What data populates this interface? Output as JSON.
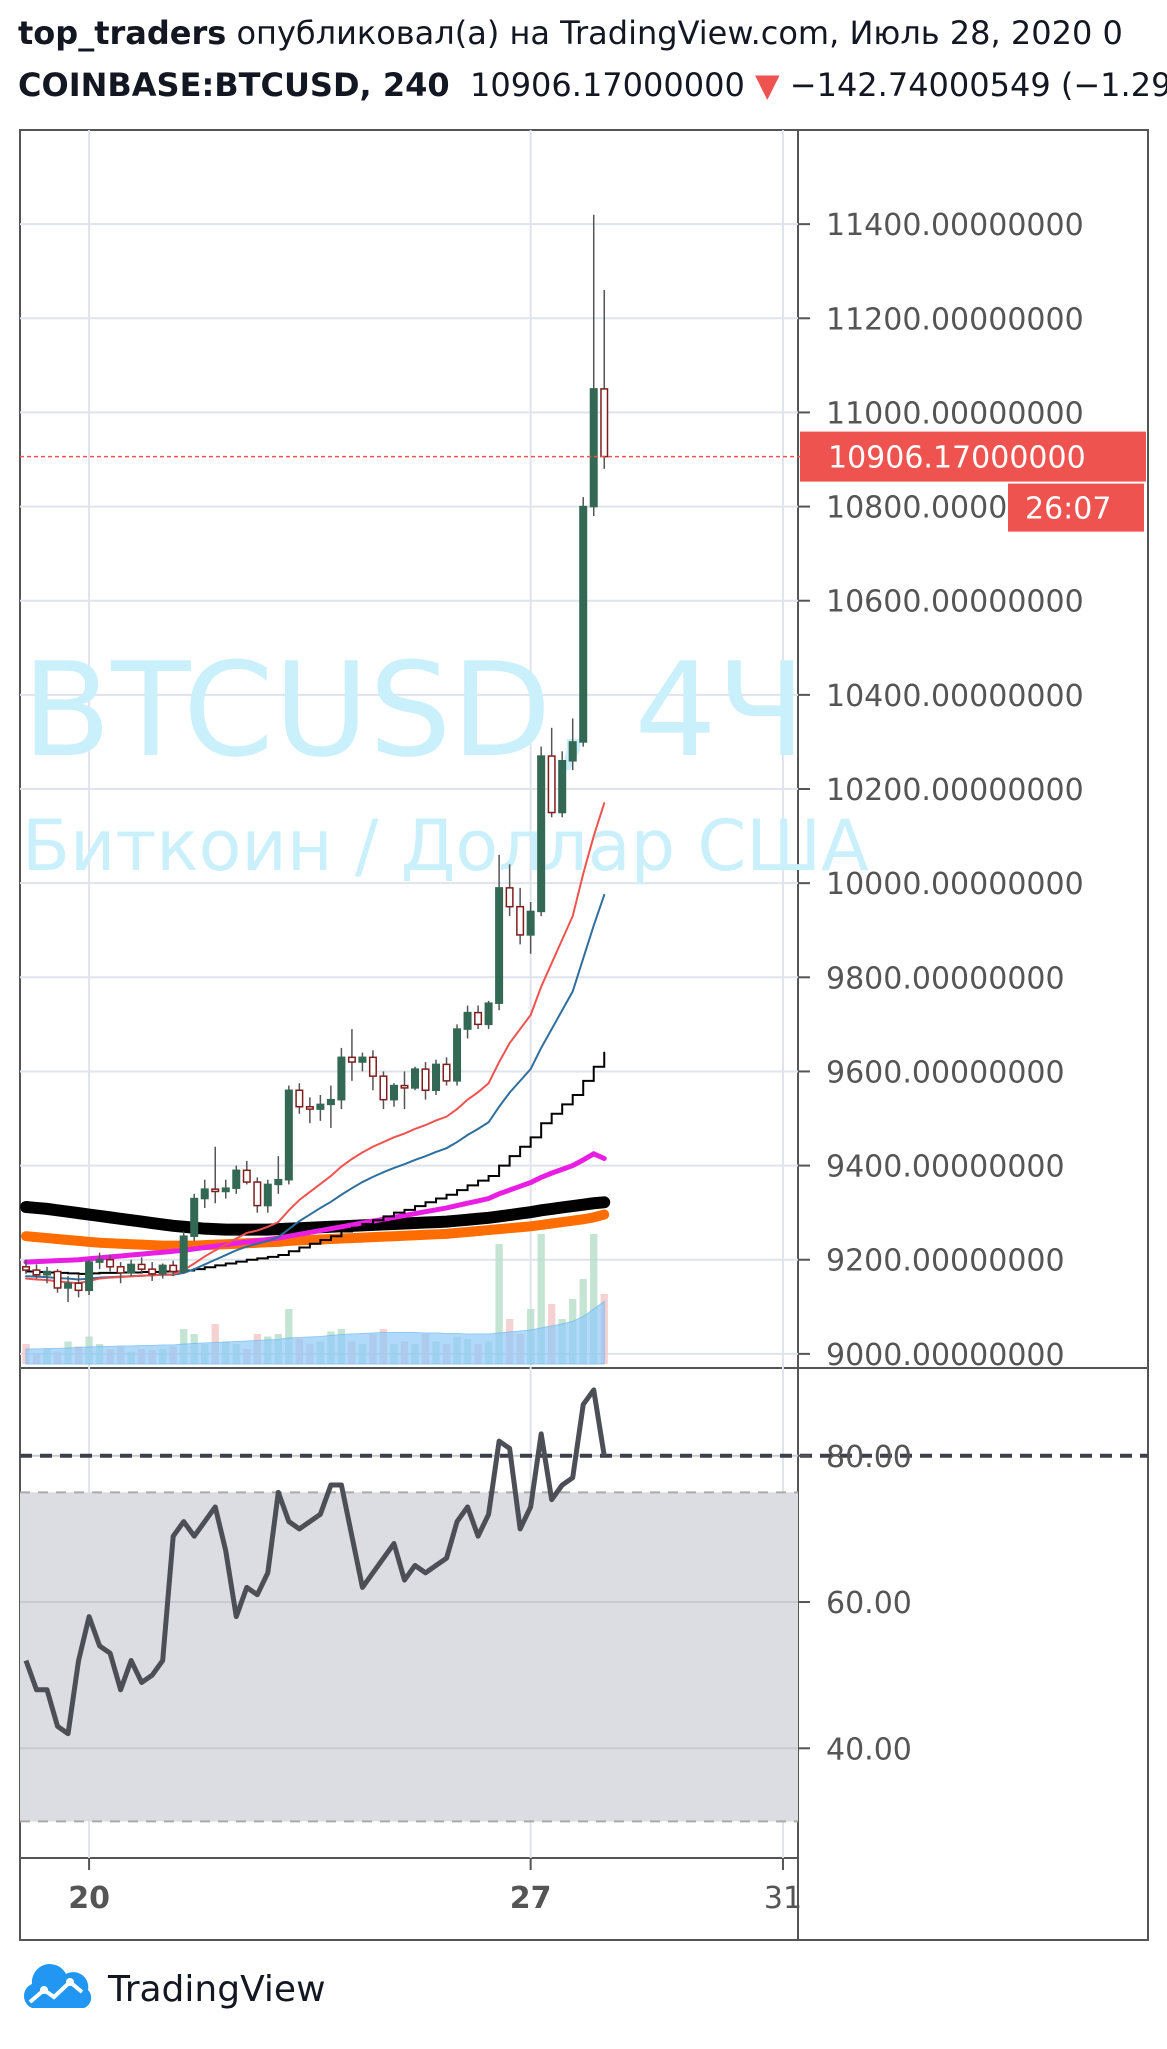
{
  "header": {
    "author": "top_traders",
    "published_text": "опубликовал(а) на TradingView.com, Июль 28, 2020 0",
    "symbol": "COINBASE:BTCUSD, 240",
    "last_price": "10906.17000000",
    "arrow": "▼",
    "change": "−142.74000549 (−1.29"
  },
  "watermark": {
    "line1": "BTCUSD, 4Ч",
    "line2": "Биткоин / Доллар США"
  },
  "footer": {
    "brand": "TradingView",
    "logo_icon": "tradingview-cloud-icon"
  },
  "colors": {
    "bull": "#336854",
    "bear": "#7f1d1d",
    "price_line": "#ef5350",
    "ema_red": "#ef5350",
    "ema_blue": "#2e6f9e",
    "ma_black_thin": "#000000",
    "ma_magenta": "#e91ee3",
    "ma_black_thick": "#000000",
    "ma_orange": "#ff6d00",
    "rsi_line": "#4d4f57",
    "rsi_band": "#dcdde2",
    "watermark": "#c9f0fb"
  },
  "chart_data": [
    {
      "type": "candlestick",
      "symbol": "COINBASE:BTCUSD",
      "interval": "240",
      "y_ticks": [
        "11400.00000000",
        "11200.00000000",
        "11000.00000000",
        "10800.00000000",
        "10600.00000000",
        "10400.00000000",
        "10200.00000000",
        "10000.00000000",
        "9800.00000000",
        "9600.00000000",
        "9400.00000000",
        "9200.00000000",
        "9000.00000000"
      ],
      "y_tick_values": [
        11400,
        11200,
        11000,
        10800,
        10600,
        10400,
        10200,
        10000,
        9800,
        9600,
        9400,
        9200,
        9000
      ],
      "ylim": [
        8970,
        11600
      ],
      "x_ticks": [
        {
          "label": "20",
          "index": 6
        },
        {
          "label": "27",
          "index": 48
        },
        {
          "label": "31",
          "index": 72
        }
      ],
      "xlim": [
        0,
        74
      ],
      "last_price_label": "10906.17000000",
      "last_price": 10906.17,
      "countdown_label": "26:07",
      "candles": [
        [
          9185,
          9200,
          9170,
          9178
        ],
        [
          9178,
          9190,
          9160,
          9168
        ],
        [
          9168,
          9185,
          9150,
          9175
        ],
        [
          9175,
          9180,
          9130,
          9140
        ],
        [
          9140,
          9165,
          9110,
          9150
        ],
        [
          9150,
          9170,
          9120,
          9135
        ],
        [
          9135,
          9200,
          9125,
          9195
        ],
        [
          9195,
          9215,
          9180,
          9200
        ],
        [
          9200,
          9210,
          9175,
          9185
        ],
        [
          9185,
          9195,
          9150,
          9172
        ],
        [
          9172,
          9200,
          9165,
          9190
        ],
        [
          9190,
          9205,
          9170,
          9180
        ],
        [
          9180,
          9195,
          9155,
          9170
        ],
        [
          9170,
          9192,
          9160,
          9188
        ],
        [
          9188,
          9198,
          9165,
          9175
        ],
        [
          9175,
          9260,
          9170,
          9250
        ],
        [
          9250,
          9340,
          9240,
          9330
        ],
        [
          9330,
          9370,
          9310,
          9350
        ],
        [
          9350,
          9440,
          9320,
          9345
        ],
        [
          9345,
          9370,
          9330,
          9352
        ],
        [
          9352,
          9400,
          9340,
          9390
        ],
        [
          9390,
          9410,
          9360,
          9365
        ],
        [
          9365,
          9375,
          9300,
          9315
        ],
        [
          9315,
          9370,
          9300,
          9360
        ],
        [
          9360,
          9420,
          9340,
          9370
        ],
        [
          9370,
          9570,
          9360,
          9560
        ],
        [
          9560,
          9575,
          9510,
          9525
        ],
        [
          9525,
          9545,
          9490,
          9520
        ],
        [
          9520,
          9550,
          9495,
          9530
        ],
        [
          9530,
          9570,
          9480,
          9540
        ],
        [
          9540,
          9650,
          9520,
          9630
        ],
        [
          9630,
          9690,
          9580,
          9620
        ],
        [
          9620,
          9640,
          9600,
          9630
        ],
        [
          9630,
          9645,
          9560,
          9590
        ],
        [
          9590,
          9600,
          9520,
          9540
        ],
        [
          9540,
          9575,
          9525,
          9570
        ],
        [
          9570,
          9600,
          9520,
          9565
        ],
        [
          9565,
          9610,
          9560,
          9605
        ],
        [
          9605,
          9620,
          9540,
          9560
        ],
        [
          9560,
          9625,
          9550,
          9615
        ],
        [
          9615,
          9630,
          9570,
          9580
        ],
        [
          9580,
          9700,
          9570,
          9690
        ],
        [
          9690,
          9740,
          9670,
          9725
        ],
        [
          9725,
          9740,
          9690,
          9700
        ],
        [
          9700,
          9750,
          9690,
          9745
        ],
        [
          9745,
          10060,
          9730,
          9990
        ],
        [
          9990,
          10040,
          9930,
          9950
        ],
        [
          9950,
          9990,
          9870,
          9890
        ],
        [
          9890,
          9960,
          9850,
          9940
        ],
        [
          9940,
          10290,
          9930,
          10270
        ],
        [
          10270,
          10330,
          10140,
          10150
        ],
        [
          10150,
          10280,
          10140,
          10260
        ],
        [
          10260,
          10350,
          10240,
          10300
        ],
        [
          10300,
          10820,
          10290,
          10800
        ],
        [
          10800,
          11420,
          10780,
          11050
        ],
        [
          11050,
          11260,
          10880,
          10906.17
        ]
      ],
      "volume": [
        40,
        20,
        30,
        25,
        45,
        35,
        55,
        40,
        30,
        35,
        25,
        30,
        28,
        30,
        35,
        70,
        60,
        40,
        80,
        45,
        40,
        30,
        60,
        55,
        60,
        110,
        50,
        40,
        45,
        65,
        70,
        45,
        40,
        60,
        70,
        40,
        45,
        40,
        60,
        45,
        40,
        55,
        50,
        40,
        45,
        240,
        90,
        60,
        110,
        260,
        120,
        90,
        130,
        170,
        260,
        140
      ],
      "volume_ma": [
        30,
        30,
        31,
        31,
        32,
        33,
        34,
        35,
        35,
        36,
        36,
        37,
        37,
        38,
        38,
        40,
        41,
        42,
        43,
        44,
        45,
        46,
        47,
        48,
        49,
        52,
        53,
        54,
        55,
        57,
        59,
        60,
        61,
        62,
        63,
        63,
        63,
        63,
        62,
        62,
        61,
        61,
        60,
        60,
        60,
        62,
        64,
        66,
        68,
        72,
        76,
        80,
        85,
        95,
        110,
        125
      ],
      "moving_averages": [
        {
          "color_key": "ema_red",
          "width": 2,
          "values": [
            9160,
            9158,
            9157,
            9154,
            9152,
            9150,
            9155,
            9160,
            9162,
            9163,
            9165,
            9166,
            9167,
            9168,
            9169,
            9178,
            9192,
            9207,
            9220,
            9232,
            9245,
            9257,
            9262,
            9270,
            9280,
            9305,
            9327,
            9344,
            9361,
            9378,
            9398,
            9414,
            9428,
            9440,
            9450,
            9460,
            9468,
            9478,
            9486,
            9496,
            9504,
            9520,
            9540,
            9556,
            9575,
            9620,
            9660,
            9690,
            9720,
            9780,
            9830,
            9880,
            9930,
            10020,
            10100,
            10170
          ]
        },
        {
          "color_key": "ema_blue",
          "width": 2,
          "values": [
            9165,
            9164,
            9163,
            9161,
            9160,
            9158,
            9160,
            9162,
            9163,
            9164,
            9165,
            9166,
            9167,
            9168,
            9168,
            9172,
            9180,
            9190,
            9200,
            9210,
            9220,
            9228,
            9234,
            9240,
            9248,
            9265,
            9282,
            9296,
            9310,
            9323,
            9338,
            9352,
            9365,
            9376,
            9386,
            9395,
            9403,
            9412,
            9420,
            9429,
            9437,
            9450,
            9465,
            9478,
            9492,
            9525,
            9555,
            9580,
            9605,
            9650,
            9690,
            9730,
            9770,
            9840,
            9910,
            9975
          ]
        },
        {
          "color_key": "ma_black_thin",
          "width": 2,
          "step": true,
          "values": [
            9175,
            9174,
            9173,
            9172,
            9171,
            9170,
            9171,
            9172,
            9172,
            9173,
            9173,
            9174,
            9174,
            9175,
            9175,
            9177,
            9180,
            9184,
            9188,
            9192,
            9196,
            9200,
            9203,
            9206,
            9210,
            9218,
            9226,
            9234,
            9242,
            9250,
            9260,
            9268,
            9276,
            9284,
            9292,
            9300,
            9306,
            9314,
            9322,
            9330,
            9338,
            9348,
            9358,
            9368,
            9378,
            9400,
            9420,
            9440,
            9460,
            9490,
            9510,
            9530,
            9550,
            9580,
            9610,
            9640
          ]
        },
        {
          "color_key": "ma_magenta",
          "width": 5,
          "values": [
            9195,
            9196,
            9197,
            9198,
            9199,
            9200,
            9202,
            9204,
            9206,
            9208,
            9210,
            9212,
            9214,
            9216,
            9218,
            9220,
            9223,
            9226,
            9229,
            9232,
            9235,
            9238,
            9240,
            9243,
            9246,
            9250,
            9254,
            9258,
            9262,
            9266,
            9270,
            9274,
            9278,
            9282,
            9286,
            9290,
            9294,
            9298,
            9302,
            9306,
            9310,
            9315,
            9320,
            9325,
            9330,
            9340,
            9348,
            9356,
            9364,
            9375,
            9384,
            9392,
            9400,
            9412,
            9425,
            9415
          ]
        },
        {
          "color_key": "ma_black_thick",
          "width": 12,
          "values": [
            9312,
            9310,
            9308,
            9305,
            9302,
            9299,
            9296,
            9293,
            9290,
            9287,
            9284,
            9281,
            9278,
            9275,
            9272,
            9270,
            9268,
            9266,
            9265,
            9264,
            9264,
            9264,
            9264,
            9264,
            9265,
            9266,
            9267,
            9268,
            9269,
            9270,
            9271,
            9272,
            9273,
            9274,
            9275,
            9276,
            9277,
            9278,
            9279,
            9280,
            9281,
            9283,
            9285,
            9287,
            9289,
            9292,
            9295,
            9298,
            9301,
            9305,
            9308,
            9311,
            9314,
            9317,
            9320,
            9322
          ]
        },
        {
          "color_key": "ma_orange",
          "width": 10,
          "values": [
            9250,
            9248,
            9246,
            9244,
            9242,
            9240,
            9238,
            9236,
            9235,
            9234,
            9233,
            9232,
            9231,
            9230,
            9230,
            9230,
            9230,
            9231,
            9232,
            9233,
            9234,
            9235,
            9236,
            9237,
            9238,
            9240,
            9241,
            9242,
            9243,
            9244,
            9245,
            9246,
            9247,
            9248,
            9249,
            9250,
            9251,
            9252,
            9253,
            9254,
            9255,
            9257,
            9259,
            9261,
            9263,
            9265,
            9267,
            9269,
            9271,
            9274,
            9277,
            9280,
            9283,
            9286,
            9290,
            9296
          ]
        }
      ]
    },
    {
      "type": "line",
      "indicator": "RSI",
      "y_ticks": [
        "80.00",
        "60.00",
        "40.00"
      ],
      "y_tick_values": [
        80,
        60,
        40
      ],
      "ylim": [
        25,
        92
      ],
      "band": [
        30,
        75
      ],
      "overbought": 80,
      "values": [
        52,
        48,
        48,
        43,
        42,
        52,
        58,
        54,
        53,
        48,
        52,
        49,
        50,
        52,
        69,
        71,
        69,
        71,
        73,
        67,
        58,
        62,
        61,
        64,
        75,
        71,
        70,
        71,
        72,
        76,
        76,
        69,
        62,
        64,
        66,
        68,
        63,
        65,
        64,
        65,
        66,
        71,
        73,
        69,
        72,
        82,
        81,
        70,
        73,
        83,
        74,
        76,
        77,
        87,
        89,
        80
      ]
    }
  ]
}
